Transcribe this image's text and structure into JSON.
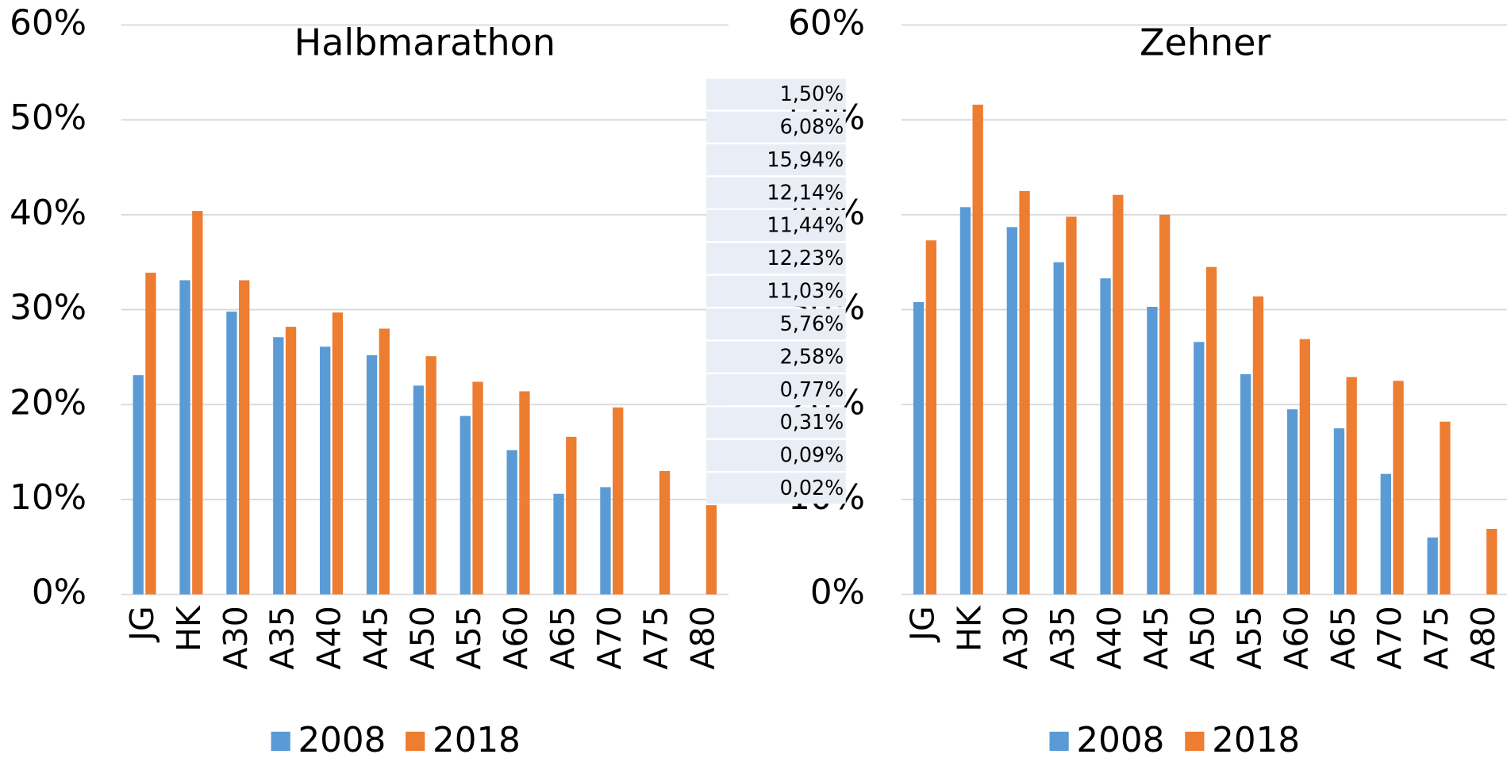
{
  "chart_data": [
    {
      "type": "bar",
      "title": "Halbmarathon",
      "categories": [
        "JG",
        "HK",
        "A30",
        "A35",
        "A40",
        "A45",
        "A50",
        "A55",
        "A60",
        "A65",
        "A70",
        "A75",
        "A80"
      ],
      "series": [
        {
          "name": "2008",
          "color": "#5b9bd5",
          "values": [
            23.1,
            33.1,
            29.8,
            27.1,
            26.1,
            25.2,
            22.0,
            18.8,
            15.2,
            10.6,
            11.3,
            null,
            null
          ]
        },
        {
          "name": "2018",
          "color": "#ed7d31",
          "values": [
            33.9,
            40.4,
            33.1,
            28.2,
            29.7,
            28.0,
            25.1,
            22.4,
            21.4,
            16.6,
            19.7,
            13.0,
            9.4
          ]
        }
      ],
      "ylim": [
        0,
        60
      ],
      "yticks": [
        {
          "value": 0,
          "label": "0%"
        },
        {
          "value": 10,
          "label": "10%"
        },
        {
          "value": 20,
          "label": "20%"
        },
        {
          "value": 30,
          "label": "30%"
        },
        {
          "value": 40,
          "label": "40%"
        },
        {
          "value": 50,
          "label": "50%"
        },
        {
          "value": 60,
          "label": "60%"
        }
      ],
      "grid": true,
      "legend": "bottom"
    },
    {
      "type": "bar",
      "title": "Zehner",
      "categories": [
        "JG",
        "HK",
        "A30",
        "A35",
        "A40",
        "A45",
        "A50",
        "A55",
        "A60",
        "A65",
        "A70",
        "A75",
        "A80"
      ],
      "series": [
        {
          "name": "2008",
          "color": "#5b9bd5",
          "values": [
            30.8,
            40.8,
            38.7,
            35.0,
            33.3,
            30.3,
            26.6,
            23.2,
            19.5,
            17.5,
            12.7,
            6.0,
            null
          ]
        },
        {
          "name": "2018",
          "color": "#ed7d31",
          "values": [
            37.3,
            51.6,
            42.5,
            39.8,
            42.1,
            40.0,
            34.5,
            31.4,
            26.9,
            22.9,
            22.5,
            18.2,
            6.9
          ]
        }
      ],
      "ylim": [
        0,
        60
      ],
      "yticks": [
        {
          "value": 0,
          "label": "0%"
        },
        {
          "value": 10,
          "label": "10%"
        },
        {
          "value": 20,
          "label": "20%"
        },
        {
          "value": 30,
          "label": "30%"
        },
        {
          "value": 40,
          "label": "40%"
        },
        {
          "value": 50,
          "label": "50%"
        },
        {
          "value": 60,
          "label": "60%"
        }
      ],
      "grid": true,
      "legend": "bottom"
    }
  ],
  "table": {
    "rows": [
      "1,50%",
      "6,08%",
      "15,94%",
      "12,14%",
      "11,44%",
      "12,23%",
      "11,03%",
      "5,76%",
      "2,58%",
      "0,77%",
      "0,31%",
      "0,09%",
      "0,02%"
    ]
  }
}
